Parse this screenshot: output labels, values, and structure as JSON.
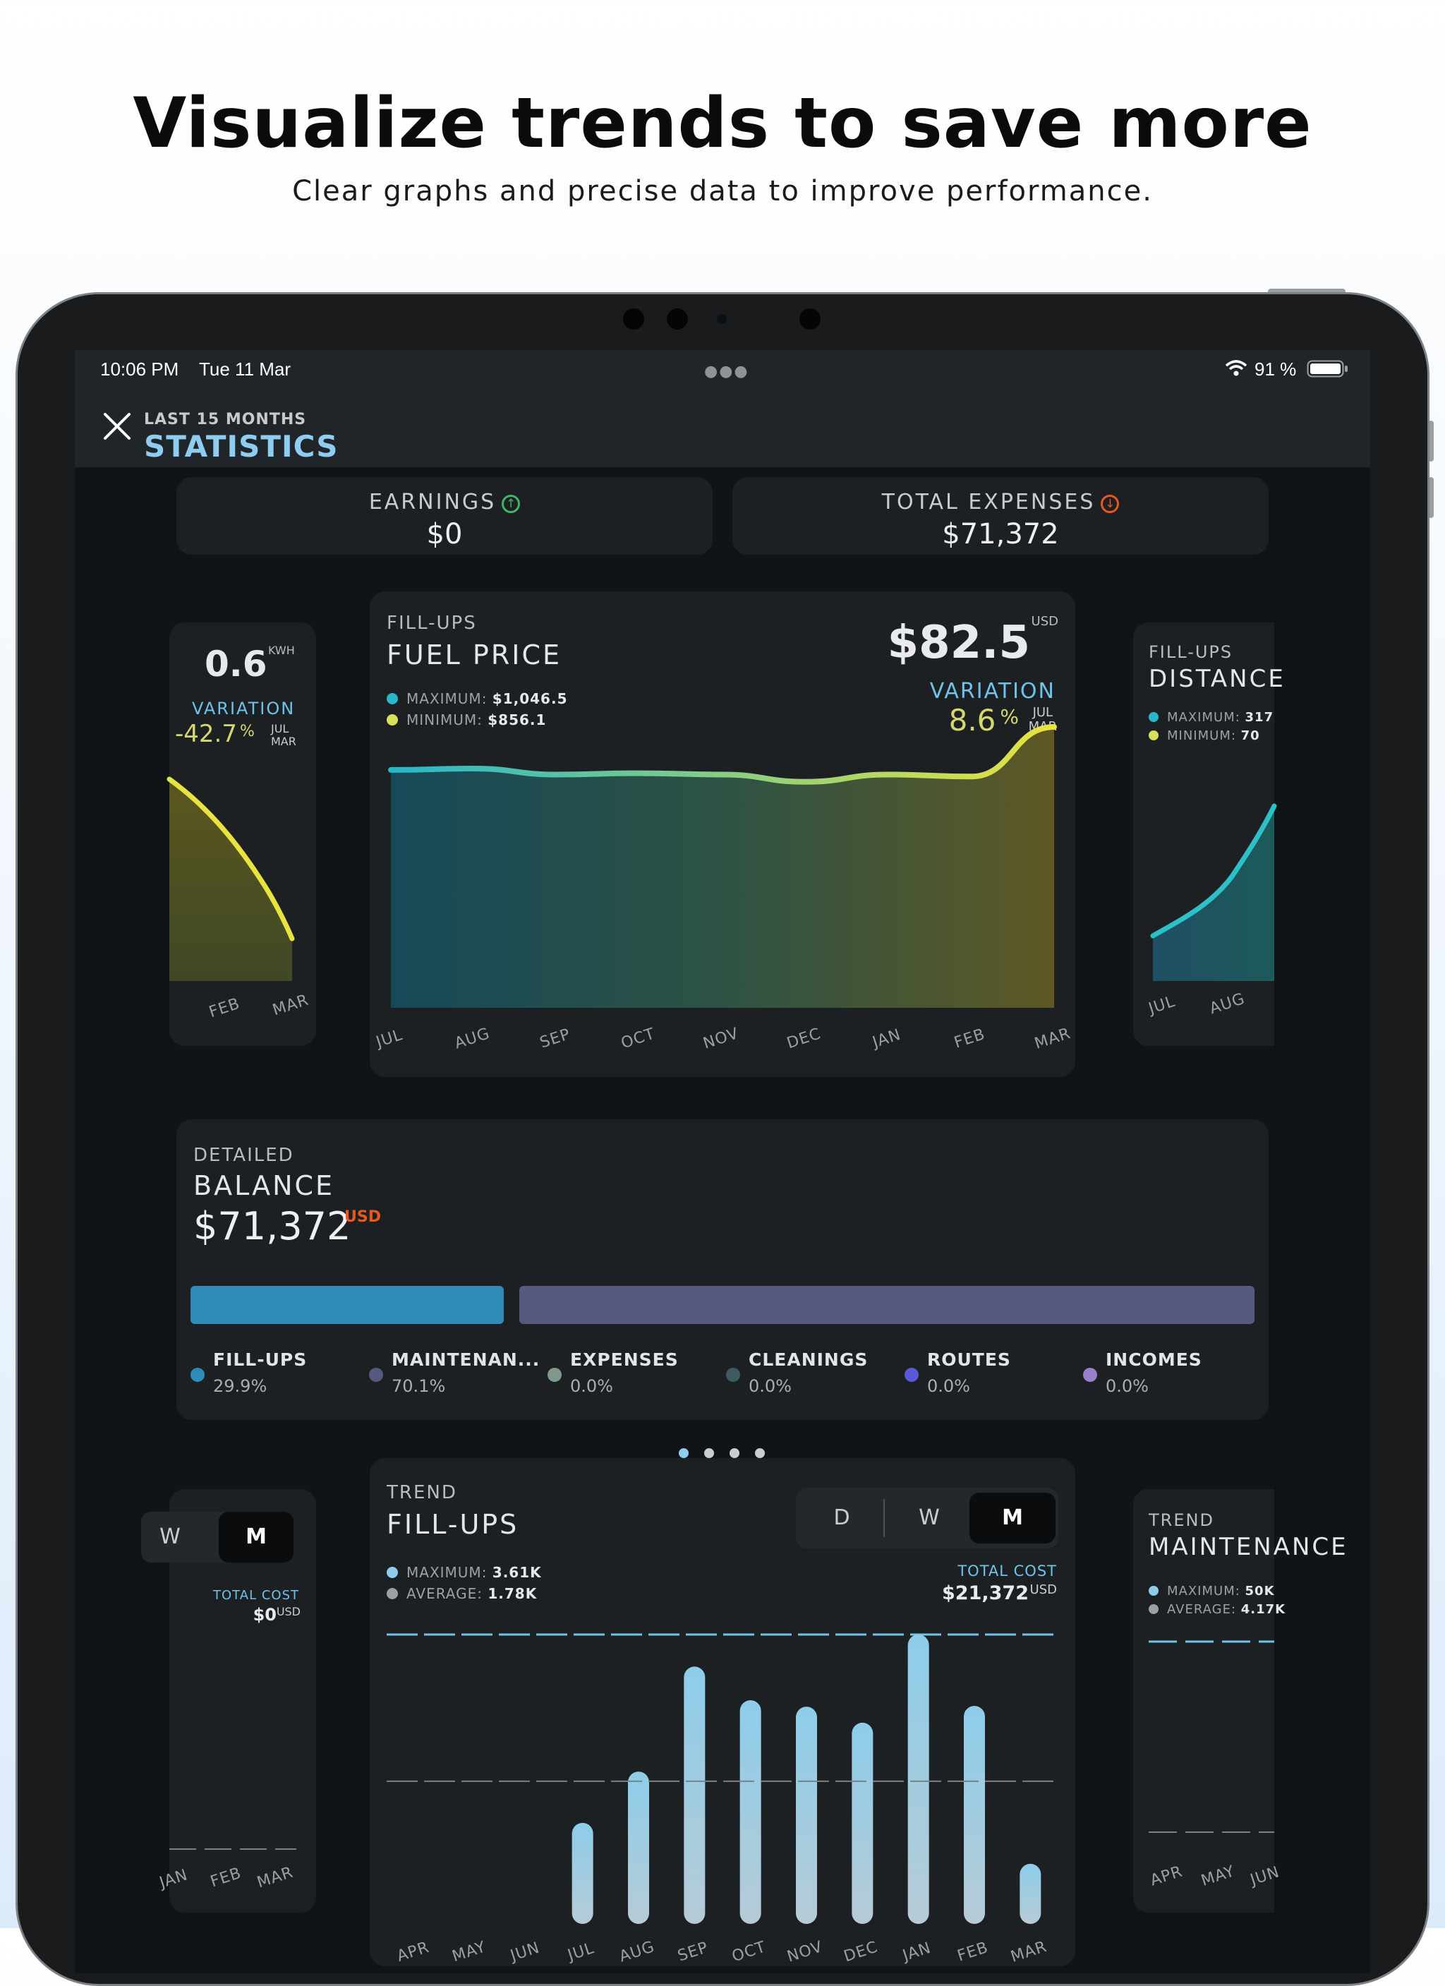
{
  "marketing": {
    "headline": "Visualize trends to save more",
    "subline": "Clear graphs and precise data to improve performance."
  },
  "status_bar": {
    "time": "10:06 PM",
    "date": "Tue 11 Mar",
    "battery": "91 %"
  },
  "nav": {
    "kicker": "LAST 15 MONTHS",
    "title": "STATISTICS"
  },
  "summary": {
    "earnings": {
      "label": "EARNINGS",
      "value": "$0",
      "trend": "up"
    },
    "expenses": {
      "label": "TOTAL EXPENSES",
      "value": "$71,372",
      "trend": "down"
    }
  },
  "carousel_top": {
    "left_card": {
      "value": "0.6",
      "unit": "KWH",
      "variation_label": "VARIATION",
      "variation": "-42.7",
      "pct": "%",
      "range_from": "JUL",
      "range_to": "MAR",
      "axis": [
        "FEB",
        "MAR"
      ]
    },
    "main_card": {
      "kicker": "FILL-UPS",
      "title": "FUEL PRICE",
      "value": "$82.5",
      "unit": "USD",
      "variation_label": "VARIATION",
      "variation": "8.6",
      "pct": "%",
      "range_from": "JUL",
      "range_to": "MAR",
      "legend_max_label": "MAXIMUM:",
      "legend_max": "$1,046.5",
      "legend_min_label": "MINIMUM:",
      "legend_min": "$856.1"
    },
    "right_card": {
      "kicker": "FILL-UPS",
      "title": "DISTANCE",
      "legend_max_label": "MAXIMUM:",
      "legend_max": "317",
      "legend_min_label": "MINIMUM:",
      "legend_min": "70",
      "axis": [
        "JUL",
        "AUG"
      ]
    },
    "page_dots": 4,
    "active_dot": 0
  },
  "balance": {
    "kicker": "DETAILED",
    "title": "BALANCE",
    "value": "$71,372",
    "unit": "USD",
    "segments": [
      {
        "label": "FILL-UPS",
        "pct": "29.9%",
        "share": 29.9,
        "color": "#2e8bb8"
      },
      {
        "label": "MAINTENAN...",
        "pct": "70.1%",
        "share": 70.1,
        "color": "#555a7e"
      },
      {
        "label": "EXPENSES",
        "pct": "0.0%",
        "share": 0,
        "color": "#7f9a8a"
      },
      {
        "label": "CLEANINGS",
        "pct": "0.0%",
        "share": 0,
        "color": "#3f5a63"
      },
      {
        "label": "ROUTES",
        "pct": "0.0%",
        "share": 0,
        "color": "#5b57d9"
      },
      {
        "label": "INCOMES",
        "pct": "0.0%",
        "share": 0,
        "color": "#9a80c8"
      }
    ]
  },
  "trend": {
    "left_card": {
      "seg": [
        "W",
        "M"
      ],
      "total_label": "TOTAL COST",
      "total": "$0",
      "unit": "USD",
      "axis": [
        "JAN",
        "FEB",
        "MAR"
      ]
    },
    "main_card": {
      "kicker": "TREND",
      "title": "FILL-UPS",
      "seg": [
        "D",
        "W",
        "M"
      ],
      "active": "M",
      "legend_max_label": "MAXIMUM:",
      "legend_max": "3.61K",
      "legend_avg_label": "AVERAGE:",
      "legend_avg": "1.78K",
      "total_label": "TOTAL COST",
      "total": "$21,372",
      "unit": "USD"
    },
    "right_card": {
      "kicker": "TREND",
      "title": "MAINTENANCE",
      "legend_max_label": "MAXIMUM:",
      "legend_max": "50K",
      "legend_avg_label": "AVERAGE:",
      "legend_avg": "4.17K",
      "axis": [
        "APR",
        "MAY",
        "JUN"
      ]
    }
  },
  "chart_data": [
    {
      "type": "area",
      "title": "FUEL PRICE",
      "x": [
        "JUL",
        "AUG",
        "SEP",
        "OCT",
        "NOV",
        "DEC",
        "JAN",
        "FEB",
        "MAR"
      ],
      "series": [
        {
          "values": [
            76.0,
            76.2,
            75.3,
            75.5,
            75.3,
            74.2,
            75.3,
            75.0,
            82.5
          ]
        }
      ],
      "ylim": [
        40,
        84
      ],
      "colors": [
        "#27b7c9",
        "#e8e33f"
      ]
    },
    {
      "type": "bar",
      "title": "FILL-UPS",
      "categories": [
        "APR",
        "MAY",
        "JUN",
        "JUL",
        "AUG",
        "SEP",
        "OCT",
        "NOV",
        "DEC",
        "JAN",
        "FEB",
        "MAR"
      ],
      "values": [
        0,
        0,
        0,
        1.26,
        1.9,
        3.21,
        2.79,
        2.71,
        2.51,
        3.61,
        2.72,
        0.75
      ],
      "max_line": 3.61,
      "avg_line": 1.78,
      "ylim": [
        0,
        3.61
      ],
      "color": "#8dcdea"
    }
  ]
}
